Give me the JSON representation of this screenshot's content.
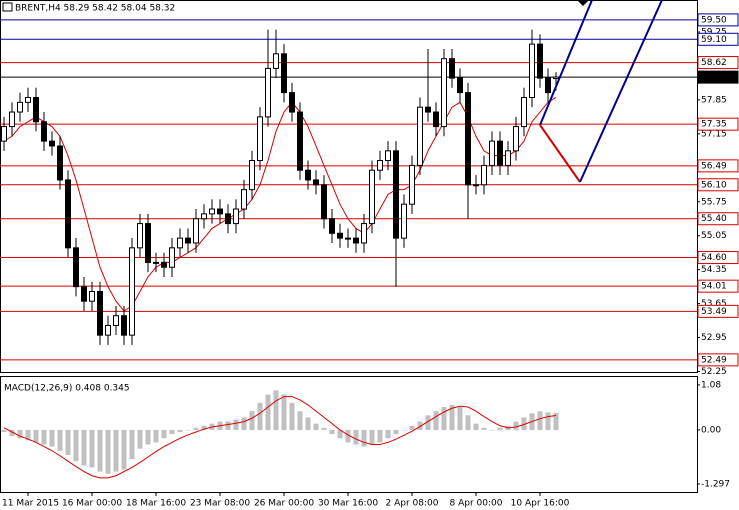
{
  "chart_data": [
    {
      "type": "candlestick",
      "title": "BRENT,H4  58.29 58.42 58.04 58.32",
      "categories": [
        null,
        null,
        null,
        "11 Mar 2015",
        null,
        null,
        null,
        null,
        null,
        null,
        null,
        "16 Mar 00:00",
        null,
        null,
        null,
        null,
        null,
        null,
        null,
        "18 Mar 16:00",
        null,
        null,
        null,
        null,
        null,
        null,
        null,
        "23 Mar 08:00",
        null,
        null,
        null,
        null,
        null,
        null,
        null,
        "26 Mar 00:00",
        null,
        null,
        null,
        null,
        null,
        null,
        null,
        "30 Mar 16:00",
        null,
        null,
        null,
        null,
        null,
        null,
        null,
        "2 Apr 08:00",
        null,
        null,
        null,
        null,
        null,
        null,
        null,
        "8 Apr 00:00",
        null,
        null,
        null,
        null,
        null,
        null,
        null,
        "10 Apr 16:00",
        null,
        null
      ],
      "ohlc": [
        [
          57.0,
          57.5,
          56.8,
          57.3
        ],
        [
          57.3,
          57.8,
          57.1,
          57.6
        ],
        [
          57.6,
          58.0,
          57.4,
          57.8
        ],
        [
          57.8,
          58.1,
          57.6,
          57.9
        ],
        [
          57.9,
          58.1,
          57.2,
          57.4
        ],
        [
          57.4,
          57.6,
          56.8,
          57.0
        ],
        [
          57.0,
          57.2,
          56.7,
          56.9
        ],
        [
          56.9,
          57.1,
          56.0,
          56.2
        ],
        [
          56.2,
          56.4,
          54.6,
          54.8
        ],
        [
          54.8,
          55.0,
          53.8,
          54.0
        ],
        [
          54.0,
          54.2,
          53.5,
          53.7
        ],
        [
          53.7,
          54.1,
          53.5,
          53.9
        ],
        [
          53.9,
          54.1,
          52.8,
          53.0
        ],
        [
          53.0,
          53.4,
          52.8,
          53.2
        ],
        [
          53.2,
          53.6,
          53.0,
          53.4
        ],
        [
          53.4,
          53.6,
          52.8,
          53.0
        ],
        [
          53.0,
          55.0,
          52.8,
          54.8
        ],
        [
          54.8,
          55.5,
          54.6,
          55.3
        ],
        [
          55.3,
          55.5,
          54.3,
          54.5
        ],
        [
          54.5,
          54.7,
          54.3,
          54.5
        ],
        [
          54.5,
          54.7,
          54.2,
          54.4
        ],
        [
          54.4,
          55.0,
          54.2,
          54.8
        ],
        [
          54.8,
          55.2,
          54.6,
          55.0
        ],
        [
          55.0,
          55.2,
          54.7,
          54.9
        ],
        [
          54.9,
          55.6,
          54.7,
          55.4
        ],
        [
          55.4,
          55.7,
          55.2,
          55.5
        ],
        [
          55.5,
          55.8,
          55.3,
          55.6
        ],
        [
          55.6,
          55.8,
          55.3,
          55.5
        ],
        [
          55.5,
          55.7,
          55.1,
          55.3
        ],
        [
          55.3,
          55.8,
          55.1,
          55.6
        ],
        [
          55.6,
          56.2,
          55.4,
          56.0
        ],
        [
          56.0,
          56.8,
          55.8,
          56.6
        ],
        [
          56.6,
          57.7,
          56.4,
          57.5
        ],
        [
          57.5,
          59.3,
          57.3,
          58.5
        ],
        [
          58.5,
          59.3,
          58.3,
          58.8
        ],
        [
          58.8,
          59.0,
          57.8,
          58.0
        ],
        [
          58.0,
          58.2,
          57.4,
          57.6
        ],
        [
          57.6,
          57.8,
          56.2,
          56.4
        ],
        [
          56.4,
          56.6,
          56.0,
          56.2
        ],
        [
          56.2,
          56.4,
          55.9,
          56.1
        ],
        [
          56.1,
          56.3,
          55.2,
          55.4
        ],
        [
          55.4,
          55.6,
          54.9,
          55.1
        ],
        [
          55.1,
          55.3,
          54.8,
          55.0
        ],
        [
          55.0,
          55.2,
          54.8,
          55.0
        ],
        [
          55.0,
          55.2,
          54.7,
          54.9
        ],
        [
          54.9,
          55.5,
          54.7,
          55.3
        ],
        [
          55.3,
          56.6,
          55.1,
          56.4
        ],
        [
          56.4,
          56.8,
          56.2,
          56.6
        ],
        [
          56.6,
          57.0,
          56.4,
          56.8
        ],
        [
          56.8,
          57.0,
          54.0,
          55.0
        ],
        [
          55.0,
          55.9,
          54.8,
          55.7
        ],
        [
          55.7,
          56.7,
          55.5,
          56.5
        ],
        [
          56.5,
          57.9,
          56.3,
          57.7
        ],
        [
          57.7,
          58.9,
          57.4,
          57.6
        ],
        [
          57.6,
          57.8,
          57.1,
          57.3
        ],
        [
          57.3,
          58.9,
          57.1,
          58.7
        ],
        [
          58.7,
          58.9,
          58.1,
          58.3
        ],
        [
          58.3,
          58.5,
          57.8,
          58.0
        ],
        [
          58.0,
          58.2,
          55.4,
          56.1
        ],
        [
          56.1,
          56.3,
          55.9,
          56.1
        ],
        [
          56.1,
          56.7,
          55.9,
          56.5
        ],
        [
          56.5,
          57.2,
          56.3,
          57.0
        ],
        [
          57.0,
          57.2,
          56.3,
          56.5
        ],
        [
          56.5,
          57.0,
          56.3,
          56.8
        ],
        [
          56.8,
          57.5,
          56.6,
          57.3
        ],
        [
          57.3,
          58.1,
          57.1,
          57.9
        ],
        [
          57.9,
          59.3,
          57.7,
          59.0
        ],
        [
          59.0,
          59.2,
          58.1,
          58.3
        ],
        [
          58.3,
          58.5,
          57.8,
          58.0
        ],
        [
          58.29,
          58.42,
          58.04,
          58.32
        ]
      ],
      "lines": [
        {
          "color": "#d40000",
          "values": [
            57.0,
            57.1,
            57.3,
            57.4,
            57.5,
            57.4,
            57.3,
            57.1,
            56.7,
            56.2,
            55.6,
            55.0,
            54.4,
            54.0,
            53.7,
            53.5,
            53.6,
            53.9,
            54.2,
            54.4,
            54.5,
            54.5,
            54.6,
            54.7,
            54.8,
            55.0,
            55.2,
            55.3,
            55.4,
            55.5,
            55.6,
            55.8,
            56.1,
            56.6,
            57.2,
            57.6,
            57.8,
            57.6,
            57.3,
            56.9,
            56.5,
            56.1,
            55.7,
            55.4,
            55.2,
            55.1,
            55.3,
            55.6,
            55.9,
            56.0,
            56.0,
            56.1,
            56.4,
            56.8,
            57.1,
            57.4,
            57.7,
            57.8,
            57.5,
            57.1,
            56.8,
            56.7,
            56.7,
            56.7,
            56.8,
            57.0,
            57.4,
            57.6,
            57.8,
            57.9
          ]
        }
      ],
      "levels": [
        {
          "value": 59.5,
          "label": "59.50",
          "color": "#0000a0"
        },
        {
          "value": 59.1,
          "label": "59.10",
          "color": "#0000a0"
        },
        {
          "value": 58.62,
          "label": "58.62",
          "color": "#d40000"
        },
        {
          "value": 58.32,
          "label": "58.32",
          "color": "#000000"
        },
        {
          "value": 57.35,
          "label": "57.35",
          "color": "#d40000"
        },
        {
          "value": 56.49,
          "label": "56.49",
          "color": "#d40000"
        },
        {
          "value": 56.1,
          "label": "56.10",
          "color": "#d40000"
        },
        {
          "value": 55.4,
          "label": "55.40",
          "color": "#d40000"
        },
        {
          "value": 54.6,
          "label": "54.60",
          "color": "#d40000"
        },
        {
          "value": 54.01,
          "label": "54.01",
          "color": "#d40000"
        },
        {
          "value": 53.49,
          "label": "53.49",
          "color": "#d40000"
        },
        {
          "value": 52.49,
          "label": "52.49",
          "color": "#d40000"
        }
      ],
      "ylim": [
        52.24,
        59.91
      ],
      "yticks": [
        59.25,
        57.85,
        57.15,
        55.75,
        55.05,
        54.35,
        53.65,
        52.95,
        52.25
      ]
    },
    {
      "type": "macd",
      "title": "MACD(12,26,9) 0.408 0.345",
      "color": "#c0c0c0",
      "values": [
        -0.05,
        -0.15,
        -0.2,
        -0.25,
        -0.3,
        -0.35,
        -0.4,
        -0.5,
        -0.6,
        -0.75,
        -0.85,
        -0.9,
        -1.0,
        -1.05,
        -1.0,
        -0.95,
        -0.7,
        -0.45,
        -0.35,
        -0.3,
        -0.2,
        -0.1,
        -0.05,
        0.0,
        0.05,
        0.1,
        0.15,
        0.2,
        0.2,
        0.25,
        0.3,
        0.45,
        0.65,
        0.85,
        0.95,
        0.85,
        0.65,
        0.45,
        0.3,
        0.15,
        0.05,
        -0.1,
        -0.2,
        -0.3,
        -0.35,
        -0.4,
        -0.35,
        -0.3,
        -0.2,
        -0.1,
        0.0,
        0.1,
        0.2,
        0.35,
        0.45,
        0.55,
        0.6,
        0.55,
        0.35,
        0.15,
        0.05,
        0.0,
        0.05,
        0.1,
        0.2,
        0.3,
        0.4,
        0.45,
        0.42,
        0.41
      ],
      "signal": {
        "color": "#e00000",
        "values": [
          0.05,
          -0.05,
          -0.15,
          -0.22,
          -0.3,
          -0.4,
          -0.5,
          -0.62,
          -0.75,
          -0.88,
          -1.0,
          -1.1,
          -1.15,
          -1.15,
          -1.1,
          -1.0,
          -0.9,
          -0.78,
          -0.65,
          -0.52,
          -0.4,
          -0.3,
          -0.2,
          -0.12,
          -0.05,
          0.02,
          0.07,
          0.1,
          0.13,
          0.16,
          0.2,
          0.28,
          0.4,
          0.55,
          0.7,
          0.8,
          0.8,
          0.72,
          0.6,
          0.45,
          0.3,
          0.15,
          0.0,
          -0.12,
          -0.22,
          -0.3,
          -0.35,
          -0.35,
          -0.3,
          -0.22,
          -0.13,
          -0.03,
          0.08,
          0.2,
          0.32,
          0.43,
          0.52,
          0.57,
          0.55,
          0.45,
          0.32,
          0.2,
          0.1,
          0.05,
          0.07,
          0.13,
          0.2,
          0.27,
          0.32,
          0.345
        ]
      },
      "ylim": [
        -1.49,
        1.27
      ],
      "yticks": [
        1.08,
        {
          "value": 0,
          "label": "0.00"
        },
        -1.297
      ]
    }
  ]
}
